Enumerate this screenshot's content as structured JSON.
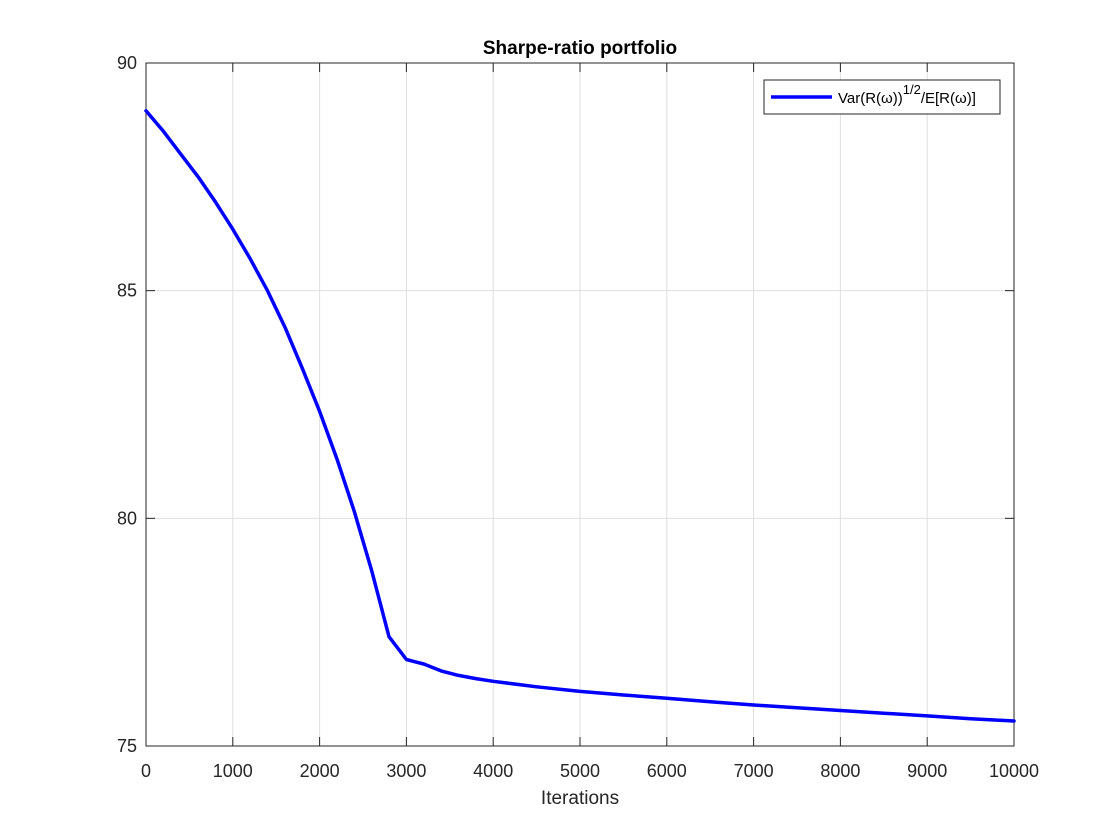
{
  "chart_data": {
    "type": "line",
    "title": "Sharpe-ratio portfolio",
    "xlabel": "Iterations",
    "ylabel": "",
    "xlim": [
      0,
      10000
    ],
    "ylim": [
      75,
      90
    ],
    "xticks": [
      0,
      1000,
      2000,
      3000,
      4000,
      5000,
      6000,
      7000,
      8000,
      9000,
      10000
    ],
    "yticks": [
      75,
      80,
      85,
      90
    ],
    "grid": true,
    "legend_position": "top-right",
    "series": [
      {
        "name": "Var(R(ω))1/2/E[R(ω)]",
        "color": "#0000ff",
        "x": [
          0,
          200,
          400,
          600,
          800,
          1000,
          1200,
          1400,
          1600,
          1800,
          2000,
          2200,
          2400,
          2600,
          2800,
          3000,
          3100,
          3200,
          3400,
          3600,
          3800,
          4000,
          4500,
          5000,
          5500,
          6000,
          6500,
          7000,
          7500,
          8000,
          8500,
          9000,
          9500,
          10000
        ],
        "y": [
          88.95,
          88.5,
          88.0,
          87.5,
          86.95,
          86.35,
          85.7,
          85.0,
          84.2,
          83.3,
          82.35,
          81.3,
          80.15,
          78.85,
          77.4,
          76.9,
          76.85,
          76.8,
          76.65,
          76.55,
          76.48,
          76.42,
          76.3,
          76.2,
          76.12,
          76.05,
          75.97,
          75.9,
          75.84,
          75.78,
          75.72,
          75.66,
          75.6,
          75.55
        ]
      }
    ],
    "legend_label_parts": {
      "base": "Var(R(ω))",
      "superscript": "1/2",
      "tail": "/E[R(ω)]"
    }
  }
}
